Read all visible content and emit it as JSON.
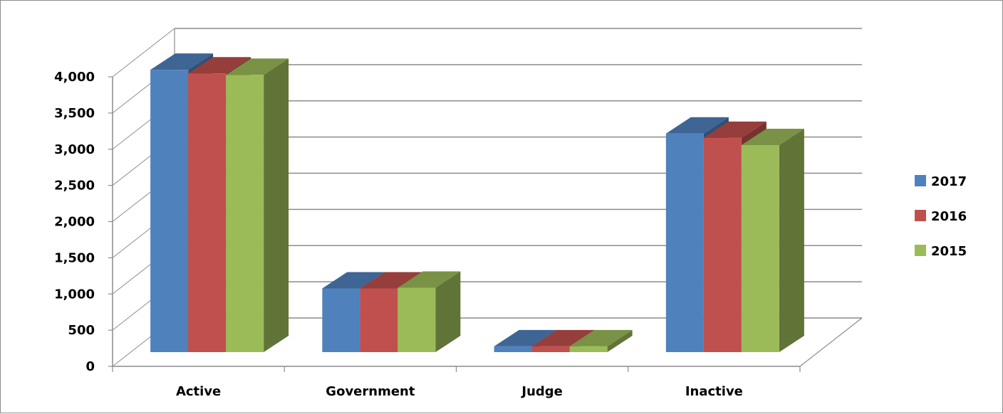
{
  "chart_data": {
    "type": "bar",
    "variant": "3d-clustered-column",
    "title": "",
    "xlabel": "",
    "ylabel": "",
    "categories": [
      "Active",
      "Government",
      "Judge",
      "Inactive"
    ],
    "y_ticks": [
      "0",
      "500",
      "1,000",
      "1,500",
      "2,000",
      "2,500",
      "3,000",
      "3,500",
      "4,000"
    ],
    "ylim": [
      0,
      4000
    ],
    "grid": true,
    "legend_position": "right",
    "series": [
      {
        "name": "2017",
        "color": "#4f81bd",
        "values": [
          3900,
          880,
          80,
          3020
        ]
      },
      {
        "name": "2016",
        "color": "#c0504d",
        "values": [
          3850,
          880,
          80,
          2960
        ]
      },
      {
        "name": "2015",
        "color": "#9bbb59",
        "values": [
          3830,
          890,
          80,
          2860
        ]
      }
    ]
  }
}
